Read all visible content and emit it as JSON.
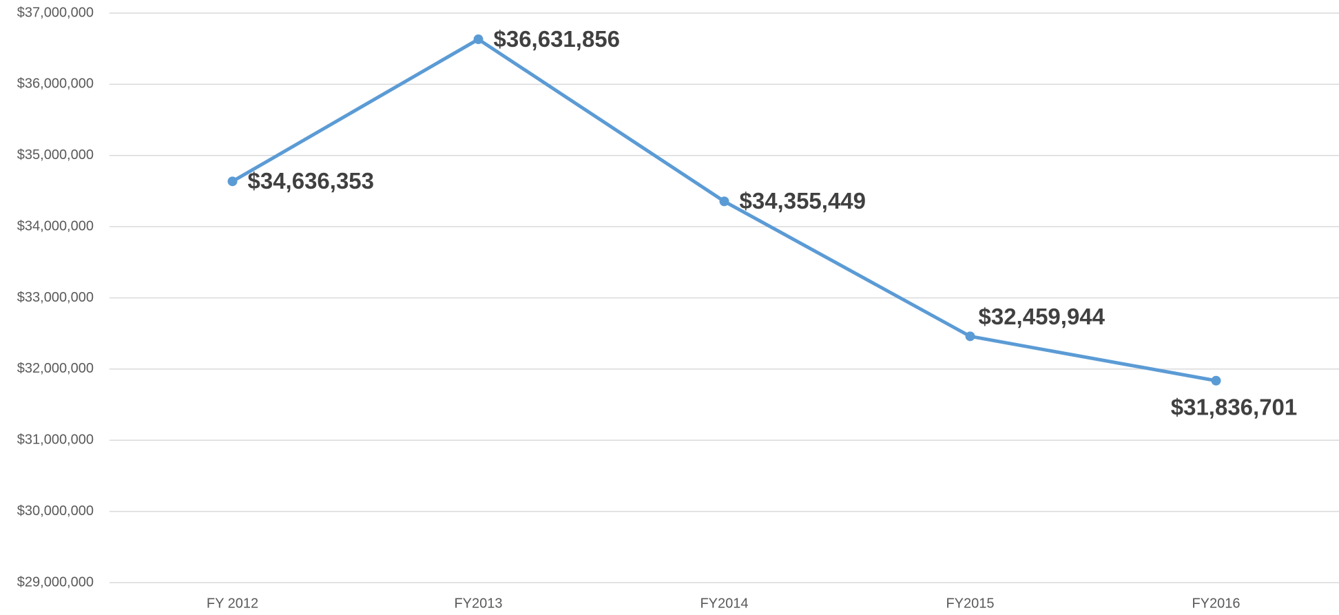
{
  "chart_data": {
    "type": "line",
    "categories": [
      "FY 2012",
      "FY2013",
      "FY2014",
      "FY2015",
      "FY2016"
    ],
    "series": [
      {
        "name": null,
        "color": "#5b9bd5",
        "values": [
          34636353,
          36631856,
          34355449,
          32459944,
          31836701
        ],
        "value_labels": [
          "$34,636,353",
          "$36,631,856",
          "$34,355,449",
          "$32,459,944",
          "$31,836,701"
        ]
      }
    ],
    "ylim": [
      29000000,
      37000000
    ],
    "yticks": [
      {
        "value": 29000000,
        "label": "$29,000,000"
      },
      {
        "value": 30000000,
        "label": "$30,000,000"
      },
      {
        "value": 31000000,
        "label": "$31,000,000"
      },
      {
        "value": 32000000,
        "label": "$32,000,000"
      },
      {
        "value": 33000000,
        "label": "$33,000,000"
      },
      {
        "value": 34000000,
        "label": "$34,000,000"
      },
      {
        "value": 35000000,
        "label": "$35,000,000"
      },
      {
        "value": 36000000,
        "label": "$36,000,000"
      },
      {
        "value": 37000000,
        "label": "$37,000,000"
      }
    ],
    "grid": true
  }
}
